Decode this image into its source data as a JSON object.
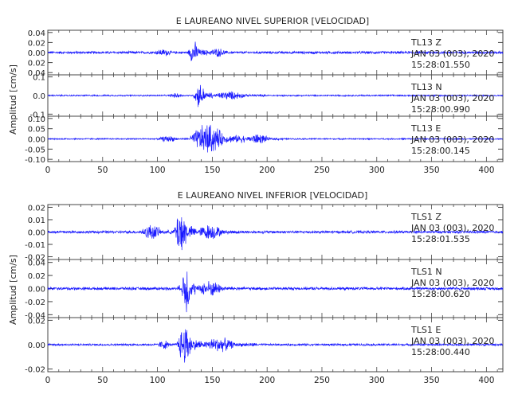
{
  "chart_data": [
    {
      "type": "line",
      "title": "E LAUREANO NIVEL SUPERIOR [VELOCIDAD]",
      "ylabel": "Amplitud [cm/s]",
      "xlabel": "",
      "xlim": [
        0,
        415
      ],
      "xticks": [
        "0",
        "50",
        "100",
        "150",
        "200",
        "250",
        "300",
        "350",
        "400"
      ],
      "grid": false,
      "color": "#1a1aff",
      "series": [
        {
          "name": "TL13 Z",
          "info": [
            "TL13   Z",
            "JAN 03 (003), 2020",
            "15:28:01.550"
          ],
          "ylim": [
            -0.04,
            0.04
          ],
          "yticks": [
            "0.04",
            "0.02",
            "0.00",
            "0.02",
            "0.04"
          ],
          "peak": 0.022,
          "bursts": [
            {
              "t0": 96,
              "t1": 125,
              "amp": 0.007
            },
            {
              "t0": 128,
              "t1": 145,
              "amp": 0.022
            },
            {
              "t0": 145,
              "t1": 175,
              "amp": 0.009
            }
          ],
          "base": 0.0025
        },
        {
          "name": "TL13 N",
          "info": [
            "TL13   N",
            "JAN 03 (003), 2020",
            "15:28:00.990"
          ],
          "ylim": [
            -0.15,
            0.15
          ],
          "yticks": [
            "0.1",
            "0.0",
            "-0.1"
          ],
          "peak": 0.1,
          "bursts": [
            {
              "t0": 110,
              "t1": 132,
              "amp": 0.02
            },
            {
              "t0": 133,
              "t1": 150,
              "amp": 0.1
            },
            {
              "t0": 150,
              "t1": 200,
              "amp": 0.035
            }
          ],
          "base": 0.006
        },
        {
          "name": "TL13 E",
          "info": [
            "TL13   E",
            "JAN 03 (003), 2020",
            "15:28:00.145"
          ],
          "ylim": [
            -0.12,
            0.12
          ],
          "yticks": [
            "0.10",
            "0.05",
            "0.00",
            "-0.05",
            "-0.10"
          ],
          "peak": 0.09,
          "bursts": [
            {
              "t0": 100,
              "t1": 130,
              "amp": 0.018
            },
            {
              "t0": 130,
              "t1": 180,
              "amp": 0.09
            },
            {
              "t0": 180,
              "t1": 215,
              "amp": 0.03
            }
          ],
          "base": 0.004
        }
      ]
    },
    {
      "type": "line",
      "title": "E LAUREANO NIVEL INFERIOR [VELOCIDAD]",
      "ylabel": "Amplitud [cm/s]",
      "xlabel": "",
      "xlim": [
        0,
        415
      ],
      "xticks": [
        "0",
        "50",
        "100",
        "150",
        "200",
        "250",
        "300",
        "350",
        "400"
      ],
      "grid": false,
      "color": "#1a1aff",
      "series": [
        {
          "name": "TLS1 Z",
          "info": [
            "TLS1   Z",
            "JAN 03 (003), 2020",
            "15:28:01.535"
          ],
          "ylim": [
            -0.022,
            0.022
          ],
          "yticks": [
            "0.02",
            "0.01",
            "0.00",
            "-0.01",
            "-0.02"
          ],
          "peak": 0.021,
          "bursts": [
            {
              "t0": 85,
              "t1": 115,
              "amp": 0.007
            },
            {
              "t0": 115,
              "t1": 135,
              "amp": 0.021
            },
            {
              "t0": 135,
              "t1": 175,
              "amp": 0.007
            }
          ],
          "base": 0.0012
        },
        {
          "name": "TLS1 N",
          "info": [
            "TLS1   N",
            "JAN 03 (003), 2020",
            "15:28:00.620"
          ],
          "ylim": [
            -0.045,
            0.045
          ],
          "yticks": [
            "0.04",
            "0.02",
            "0.00",
            "-0.02",
            "-0.04"
          ],
          "peak": 0.045,
          "bursts": [
            {
              "t0": 118,
              "t1": 122,
              "amp": 0.008
            },
            {
              "t0": 122,
              "t1": 135,
              "amp": 0.045
            },
            {
              "t0": 135,
              "t1": 175,
              "amp": 0.014
            }
          ],
          "base": 0.0025
        },
        {
          "name": "TLS1 E",
          "info": [
            "TLS1   E",
            "JAN 03 (003), 2020",
            "15:28:00.440"
          ],
          "ylim": [
            -0.03,
            0.03
          ],
          "yticks": [
            "0.02",
            "0.00",
            "-0.02"
          ],
          "peak": 0.025,
          "bursts": [
            {
              "t0": 100,
              "t1": 118,
              "amp": 0.006
            },
            {
              "t0": 118,
              "t1": 140,
              "amp": 0.025
            },
            {
              "t0": 140,
              "t1": 190,
              "amp": 0.009
            }
          ],
          "base": 0.0013
        }
      ]
    }
  ]
}
